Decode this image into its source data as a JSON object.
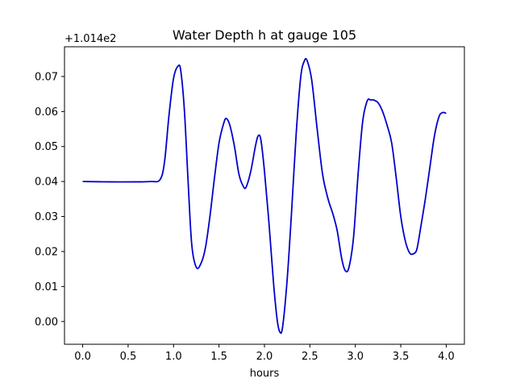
{
  "chart_data": {
    "type": "line",
    "title": "Water Depth h at gauge 105",
    "xlabel": "hours",
    "ylabel": "",
    "y_offset_label": "+1.014e2",
    "xlim": [
      -0.2,
      4.2
    ],
    "ylim": [
      -0.0065,
      0.0785
    ],
    "x_ticks": [
      0.0,
      0.5,
      1.0,
      1.5,
      2.0,
      2.5,
      3.0,
      3.5,
      4.0
    ],
    "x_tick_labels": [
      "0.0",
      "0.5",
      "1.0",
      "1.5",
      "2.0",
      "2.5",
      "3.0",
      "3.5",
      "4.0"
    ],
    "y_ticks": [
      0.0,
      0.01,
      0.02,
      0.03,
      0.04,
      0.05,
      0.06,
      0.07
    ],
    "y_tick_labels": [
      "0.00",
      "0.01",
      "0.02",
      "0.03",
      "0.04",
      "0.05",
      "0.06",
      "0.07"
    ],
    "grid": false,
    "line_color": "#0000cc",
    "series": [
      {
        "x": [
          0.0,
          0.3,
          0.6,
          0.75,
          0.85,
          0.9,
          0.95,
          1.0,
          1.05,
          1.08,
          1.12,
          1.16,
          1.2,
          1.25,
          1.3,
          1.35,
          1.4,
          1.45,
          1.5,
          1.55,
          1.58,
          1.62,
          1.67,
          1.72,
          1.77,
          1.8,
          1.85,
          1.9,
          1.93,
          1.96,
          2.0,
          2.05,
          2.1,
          2.14,
          2.17,
          2.2,
          2.25,
          2.3,
          2.35,
          2.4,
          2.44,
          2.47,
          2.52,
          2.58,
          2.64,
          2.7,
          2.75,
          2.8,
          2.85,
          2.89,
          2.93,
          2.98,
          3.03,
          3.08,
          3.13,
          3.17,
          3.2,
          3.25,
          3.3,
          3.35,
          3.4,
          3.45,
          3.5,
          3.55,
          3.6,
          3.65,
          3.68,
          3.72,
          3.77,
          3.82,
          3.87,
          3.92,
          3.96,
          4.0
        ],
        "y": [
          0.04,
          0.0399,
          0.0399,
          0.04,
          0.0405,
          0.0455,
          0.059,
          0.0695,
          0.073,
          0.0715,
          0.06,
          0.04,
          0.022,
          0.0155,
          0.0165,
          0.021,
          0.03,
          0.041,
          0.051,
          0.0565,
          0.058,
          0.056,
          0.05,
          0.042,
          0.0385,
          0.0385,
          0.043,
          0.05,
          0.053,
          0.052,
          0.043,
          0.028,
          0.011,
          0.0005,
          -0.003,
          -0.0015,
          0.012,
          0.032,
          0.054,
          0.07,
          0.0745,
          0.0745,
          0.069,
          0.055,
          0.042,
          0.035,
          0.031,
          0.026,
          0.018,
          0.0145,
          0.0155,
          0.024,
          0.042,
          0.057,
          0.063,
          0.0633,
          0.0633,
          0.0625,
          0.06,
          0.056,
          0.051,
          0.041,
          0.03,
          0.023,
          0.0195,
          0.0195,
          0.021,
          0.027,
          0.035,
          0.044,
          0.053,
          0.0585,
          0.0597,
          0.0595
        ]
      }
    ]
  }
}
